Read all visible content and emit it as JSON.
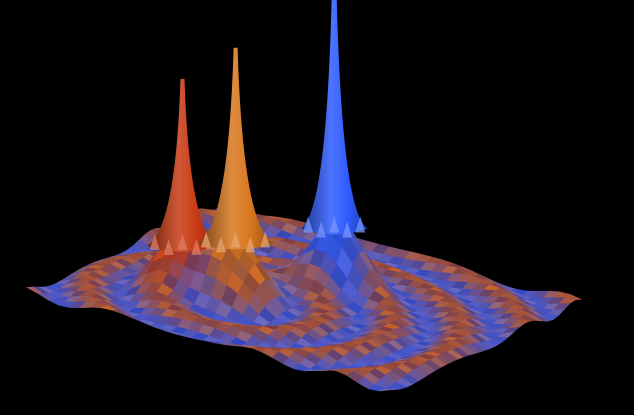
{
  "chart_data": {
    "type": "surface",
    "title": "",
    "xlabel": "",
    "ylabel": "",
    "zlabel": "",
    "axes_visible": false,
    "background": "#000000",
    "grid_resolution": 34,
    "x_range": [
      0,
      1
    ],
    "y_range": [
      0,
      1
    ],
    "z_range": [
      0,
      1
    ],
    "surface_palette": [
      "#3a5cff",
      "#5a6ae0",
      "#8a5aa8",
      "#b04a3a",
      "#c8642a",
      "#6a7ad8"
    ],
    "ripple": {
      "center": [
        0.32,
        0.42
      ],
      "frequency": 38,
      "amplitude": 0.012
    },
    "series": [
      {
        "color": "#c83a14",
        "center": [
          0.32,
          0.26
        ],
        "height": 0.55,
        "width": 0.032
      },
      {
        "color": "#d8761e",
        "center": [
          0.37,
          0.38
        ],
        "height": 0.68,
        "width": 0.034
      },
      {
        "color": "#2f5cff",
        "center": [
          0.62,
          0.52
        ],
        "height": 0.95,
        "width": 0.03
      }
    ]
  }
}
